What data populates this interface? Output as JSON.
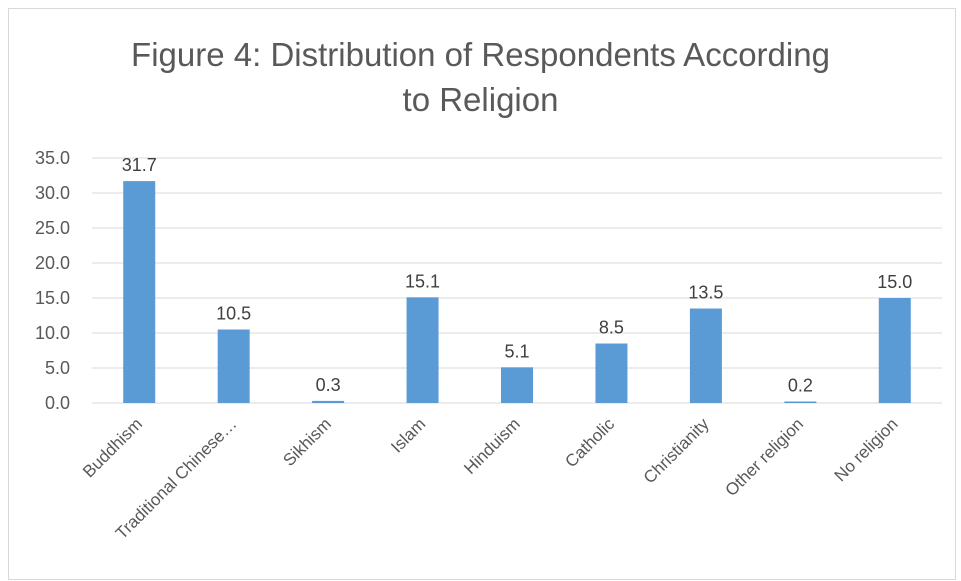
{
  "chart_data": {
    "type": "bar",
    "title_lines": [
      "Figure 4: Distribution of Respondents According",
      "to Religion"
    ],
    "categories": [
      "Buddhism",
      "Traditional Chinese…",
      "Sikhism",
      "Islam",
      "Hinduism",
      "Catholic",
      "Christianity",
      "Other religion",
      "No religion"
    ],
    "values": [
      31.7,
      10.5,
      0.3,
      15.1,
      5.1,
      8.5,
      13.5,
      0.2,
      15.0
    ],
    "value_labels": [
      "31.7",
      "10.5",
      "0.3",
      "15.1",
      "5.1",
      "8.5",
      "13.5",
      "0.2",
      "15.0"
    ],
    "y_ticks": [
      "0.0",
      "5.0",
      "10.0",
      "15.0",
      "20.0",
      "25.0",
      "30.0",
      "35.0"
    ],
    "ylim": [
      0,
      35
    ],
    "grid": true,
    "legend": "none",
    "bar_color": "#5b9bd5",
    "grid_color": "#d9d9d9"
  }
}
